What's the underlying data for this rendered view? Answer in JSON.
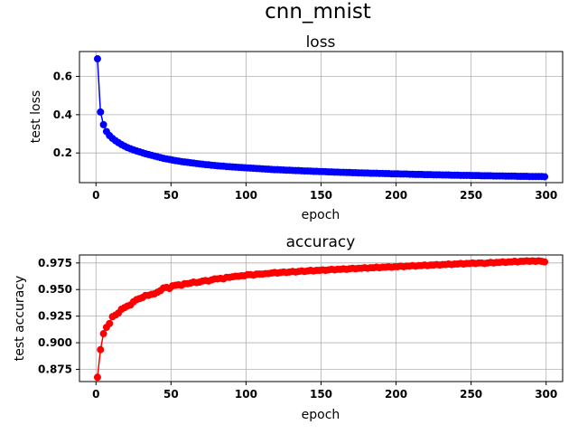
{
  "figure_title": "cnn_mnist",
  "chart_data": [
    {
      "type": "line",
      "title": "loss",
      "xlabel": "epoch",
      "ylabel": "test loss",
      "xlim": [
        -11,
        311
      ],
      "ylim": [
        0.045,
        0.73
      ],
      "xticks": [
        0,
        50,
        100,
        150,
        200,
        250,
        300
      ],
      "yticks": [
        0.2,
        0.4,
        0.6
      ],
      "ytick_labels": [
        "0.2",
        "0.4",
        "0.6"
      ],
      "grid": true,
      "marker": "circle",
      "color": "#0000ff",
      "series": [
        {
          "x": [
            1,
            3,
            5,
            7,
            9,
            11,
            13,
            15,
            17,
            19,
            21,
            23,
            25,
            27,
            29,
            31,
            33,
            35,
            37,
            39,
            41,
            43,
            45,
            47,
            49,
            51,
            53,
            55,
            57,
            59,
            61,
            63,
            65,
            67,
            69,
            71,
            73,
            75,
            77,
            79,
            81,
            83,
            85,
            87,
            89,
            91,
            93,
            95,
            97,
            99,
            101,
            103,
            105,
            107,
            109,
            111,
            113,
            115,
            117,
            119,
            121,
            123,
            125,
            127,
            129,
            131,
            133,
            135,
            137,
            139,
            141,
            143,
            145,
            147,
            149,
            151,
            153,
            155,
            157,
            159,
            161,
            163,
            165,
            167,
            169,
            171,
            173,
            175,
            177,
            179,
            181,
            183,
            185,
            187,
            189,
            191,
            193,
            195,
            197,
            199,
            201,
            203,
            205,
            207,
            209,
            211,
            213,
            215,
            217,
            219,
            221,
            223,
            225,
            227,
            229,
            231,
            233,
            235,
            237,
            239,
            241,
            243,
            245,
            247,
            249,
            251,
            253,
            255,
            257,
            259,
            261,
            263,
            265,
            267,
            269,
            271,
            273,
            275,
            277,
            279,
            281,
            283,
            285,
            287,
            289,
            291,
            293,
            295,
            297,
            299
          ],
          "values": [
            0.692,
            0.414,
            0.348,
            0.312,
            0.291,
            0.276,
            0.264,
            0.254,
            0.244,
            0.236,
            0.228,
            0.222,
            0.216,
            0.211,
            0.206,
            0.201,
            0.196,
            0.192,
            0.188,
            0.184,
            0.18,
            0.176,
            0.172,
            0.169,
            0.166,
            0.163,
            0.16,
            0.158,
            0.155,
            0.153,
            0.151,
            0.149,
            0.147,
            0.145,
            0.143,
            0.141,
            0.139,
            0.138,
            0.136,
            0.135,
            0.133,
            0.132,
            0.131,
            0.129,
            0.128,
            0.127,
            0.126,
            0.125,
            0.124,
            0.123,
            0.122,
            0.121,
            0.12,
            0.119,
            0.118,
            0.117,
            0.116,
            0.115,
            0.114,
            0.113,
            0.113,
            0.112,
            0.111,
            0.11,
            0.11,
            0.109,
            0.108,
            0.108,
            0.107,
            0.106,
            0.106,
            0.105,
            0.104,
            0.104,
            0.103,
            0.103,
            0.102,
            0.101,
            0.101,
            0.1,
            0.1,
            0.099,
            0.099,
            0.098,
            0.098,
            0.097,
            0.097,
            0.096,
            0.096,
            0.095,
            0.095,
            0.094,
            0.094,
            0.094,
            0.093,
            0.093,
            0.092,
            0.092,
            0.091,
            0.091,
            0.091,
            0.09,
            0.09,
            0.09,
            0.089,
            0.089,
            0.088,
            0.088,
            0.088,
            0.087,
            0.087,
            0.087,
            0.086,
            0.086,
            0.086,
            0.085,
            0.085,
            0.085,
            0.084,
            0.084,
            0.084,
            0.083,
            0.083,
            0.083,
            0.083,
            0.082,
            0.082,
            0.082,
            0.081,
            0.081,
            0.081,
            0.081,
            0.08,
            0.08,
            0.08,
            0.08,
            0.079,
            0.079,
            0.079,
            0.079,
            0.078,
            0.078,
            0.078,
            0.078,
            0.077,
            0.077,
            0.077,
            0.077,
            0.077,
            0.076
          ]
        }
      ]
    },
    {
      "type": "line",
      "title": "accuracy",
      "xlabel": "epoch",
      "ylabel": "test accuracy",
      "xlim": [
        -11,
        311
      ],
      "ylim": [
        0.8635,
        0.9825
      ],
      "xticks": [
        0,
        50,
        100,
        150,
        200,
        250,
        300
      ],
      "yticks": [
        0.875,
        0.9,
        0.925,
        0.95,
        0.975
      ],
      "ytick_labels": [
        "0.875",
        "0.900",
        "0.925",
        "0.950",
        "0.975"
      ],
      "grid": true,
      "marker": "circle",
      "color": "#ff0000",
      "series": [
        {
          "x": [
            1,
            3,
            5,
            7,
            9,
            11,
            13,
            15,
            17,
            19,
            21,
            23,
            25,
            27,
            29,
            31,
            33,
            35,
            37,
            39,
            41,
            43,
            45,
            47,
            49,
            51,
            53,
            55,
            57,
            59,
            61,
            63,
            65,
            67,
            69,
            71,
            73,
            75,
            77,
            79,
            81,
            83,
            85,
            87,
            89,
            91,
            93,
            95,
            97,
            99,
            101,
            103,
            105,
            107,
            109,
            111,
            113,
            115,
            117,
            119,
            121,
            123,
            125,
            127,
            129,
            131,
            133,
            135,
            137,
            139,
            141,
            143,
            145,
            147,
            149,
            151,
            153,
            155,
            157,
            159,
            161,
            163,
            165,
            167,
            169,
            171,
            173,
            175,
            177,
            179,
            181,
            183,
            185,
            187,
            189,
            191,
            193,
            195,
            197,
            199,
            201,
            203,
            205,
            207,
            209,
            211,
            213,
            215,
            217,
            219,
            221,
            223,
            225,
            227,
            229,
            231,
            233,
            235,
            237,
            239,
            241,
            243,
            245,
            247,
            249,
            251,
            253,
            255,
            257,
            259,
            261,
            263,
            265,
            267,
            269,
            271,
            273,
            275,
            277,
            279,
            281,
            283,
            285,
            287,
            289,
            291,
            293,
            295,
            297,
            299
          ],
          "values": [
            0.8675,
            0.8935,
            0.9085,
            0.9145,
            0.918,
            0.9245,
            0.926,
            0.928,
            0.9315,
            0.933,
            0.9345,
            0.9355,
            0.9385,
            0.9405,
            0.9415,
            0.9425,
            0.9445,
            0.9445,
            0.9455,
            0.946,
            0.9475,
            0.949,
            0.9515,
            0.952,
            0.951,
            0.9535,
            0.954,
            0.9545,
            0.954,
            0.9555,
            0.9555,
            0.956,
            0.957,
            0.9565,
            0.957,
            0.958,
            0.9585,
            0.958,
            0.959,
            0.96,
            0.96,
            0.9605,
            0.96,
            0.9615,
            0.9615,
            0.962,
            0.9625,
            0.9625,
            0.963,
            0.963,
            0.964,
            0.964,
            0.9635,
            0.9645,
            0.9645,
            0.9645,
            0.965,
            0.965,
            0.9655,
            0.966,
            0.9655,
            0.966,
            0.9665,
            0.966,
            0.9665,
            0.967,
            0.9665,
            0.967,
            0.9675,
            0.967,
            0.9675,
            0.968,
            0.9675,
            0.968,
            0.968,
            0.9685,
            0.968,
            0.9685,
            0.969,
            0.9685,
            0.969,
            0.969,
            0.9695,
            0.969,
            0.9695,
            0.97,
            0.9695,
            0.97,
            0.97,
            0.9705,
            0.97,
            0.9705,
            0.9705,
            0.971,
            0.9705,
            0.971,
            0.971,
            0.9715,
            0.971,
            0.9715,
            0.9715,
            0.972,
            0.9715,
            0.972,
            0.972,
            0.9725,
            0.972,
            0.9725,
            0.9725,
            0.973,
            0.9725,
            0.973,
            0.973,
            0.9735,
            0.973,
            0.9735,
            0.9735,
            0.974,
            0.9735,
            0.974,
            0.974,
            0.9745,
            0.974,
            0.9745,
            0.9745,
            0.975,
            0.9745,
            0.975,
            0.975,
            0.9745,
            0.975,
            0.9755,
            0.975,
            0.9755,
            0.9755,
            0.976,
            0.9755,
            0.976,
            0.976,
            0.9765,
            0.976,
            0.9765,
            0.9765,
            0.977,
            0.9765,
            0.977,
            0.9765,
            0.977,
            0.9765,
            0.976
          ]
        }
      ]
    }
  ]
}
